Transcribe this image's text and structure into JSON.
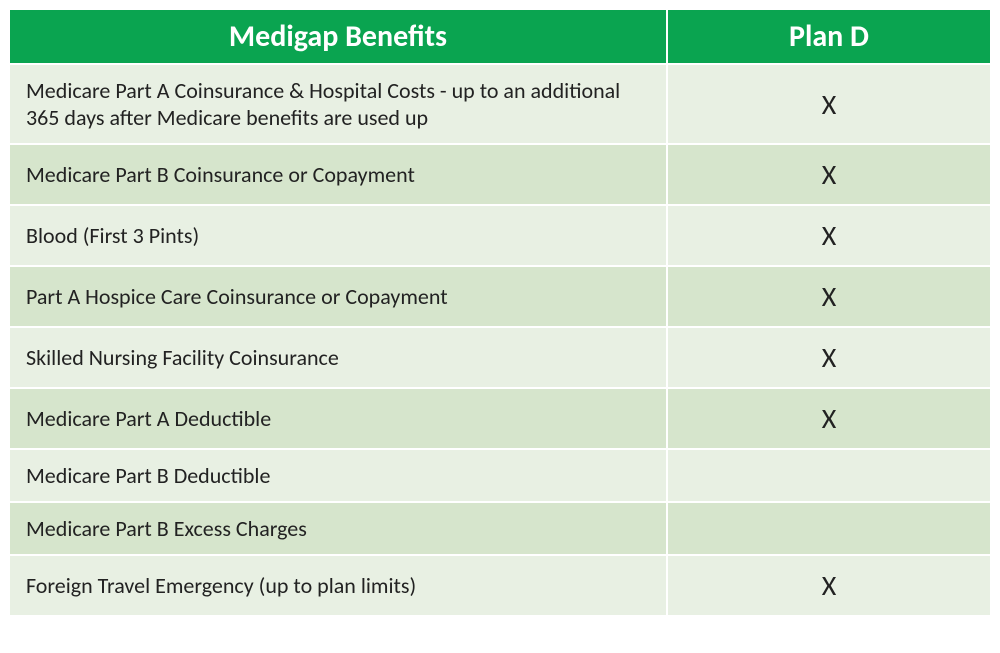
{
  "table": {
    "header_bg": "#0aa450",
    "header_font_size": 30,
    "row_font_size": 22,
    "plan_x_font_size": 28,
    "row_alt_bg_light": "#e8f0e3",
    "row_alt_bg_dark": "#d6e5cc",
    "columns": [
      {
        "label": "Medigap Benefits"
      },
      {
        "label": "Plan D"
      }
    ],
    "rows": [
      {
        "benefit": "Medicare Part A Coinsurance & Hospital Costs  - up to an additional 365 days after Medicare benefits are used up",
        "plan": "X"
      },
      {
        "benefit": "Medicare Part B Coinsurance or Copayment",
        "plan": "X"
      },
      {
        "benefit": "Blood (First 3 Pints)",
        "plan": "X"
      },
      {
        "benefit": "Part A Hospice Care Coinsurance or Copayment",
        "plan": "X"
      },
      {
        "benefit": "Skilled Nursing Facility Coinsurance",
        "plan": "X"
      },
      {
        "benefit": "Medicare Part A Deductible",
        "plan": "X"
      },
      {
        "benefit": "Medicare Part B Deductible",
        "plan": ""
      },
      {
        "benefit": "Medicare Part B Excess Charges",
        "plan": ""
      },
      {
        "benefit": "Foreign Travel Emergency (up to plan limits)",
        "plan": "X"
      }
    ]
  }
}
